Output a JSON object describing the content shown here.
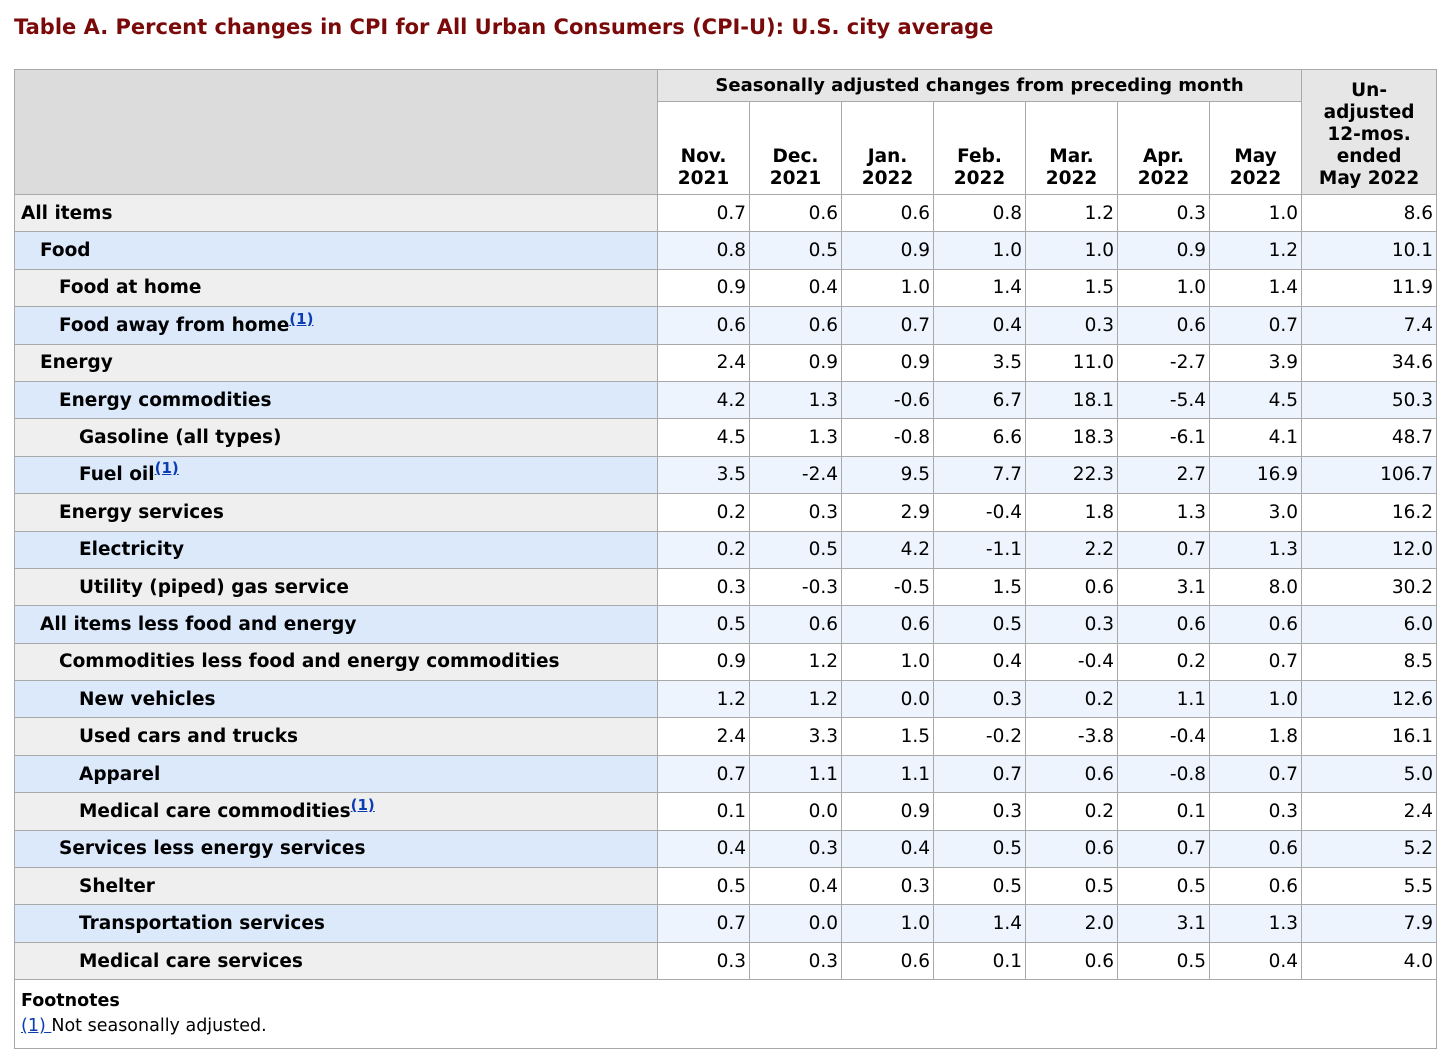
{
  "title": "Table A. Percent changes in CPI for All Urban Consumers (CPI-U): U.S. city average",
  "header": {
    "group_label": "Seasonally adjusted changes from preceding month",
    "months": [
      {
        "line1": "Nov.",
        "line2": "2021"
      },
      {
        "line1": "Dec.",
        "line2": "2021"
      },
      {
        "line1": "Jan.",
        "line2": "2022"
      },
      {
        "line1": "Feb.",
        "line2": "2022"
      },
      {
        "line1": "Mar.",
        "line2": "2022"
      },
      {
        "line1": "Apr.",
        "line2": "2022"
      },
      {
        "line1": "May",
        "line2": "2022"
      }
    ],
    "unadjusted": {
      "l1": "Un-",
      "l2": "adjusted",
      "l3": "12-mos.",
      "l4": "ended",
      "l5": "May 2022"
    }
  },
  "rows": [
    {
      "label": "All items",
      "indent": 0,
      "footnote": "",
      "values": [
        "0.7",
        "0.6",
        "0.6",
        "0.8",
        "1.2",
        "0.3",
        "1.0",
        "8.6"
      ]
    },
    {
      "label": "Food",
      "indent": 1,
      "footnote": "",
      "values": [
        "0.8",
        "0.5",
        "0.9",
        "1.0",
        "1.0",
        "0.9",
        "1.2",
        "10.1"
      ]
    },
    {
      "label": "Food at home",
      "indent": 2,
      "footnote": "",
      "values": [
        "0.9",
        "0.4",
        "1.0",
        "1.4",
        "1.5",
        "1.0",
        "1.4",
        "11.9"
      ]
    },
    {
      "label": "Food away from home",
      "indent": 2,
      "footnote": "(1)",
      "values": [
        "0.6",
        "0.6",
        "0.7",
        "0.4",
        "0.3",
        "0.6",
        "0.7",
        "7.4"
      ]
    },
    {
      "label": "Energy",
      "indent": 1,
      "footnote": "",
      "values": [
        "2.4",
        "0.9",
        "0.9",
        "3.5",
        "11.0",
        "-2.7",
        "3.9",
        "34.6"
      ]
    },
    {
      "label": "Energy commodities",
      "indent": 2,
      "footnote": "",
      "values": [
        "4.2",
        "1.3",
        "-0.6",
        "6.7",
        "18.1",
        "-5.4",
        "4.5",
        "50.3"
      ]
    },
    {
      "label": "Gasoline (all types)",
      "indent": 3,
      "footnote": "",
      "values": [
        "4.5",
        "1.3",
        "-0.8",
        "6.6",
        "18.3",
        "-6.1",
        "4.1",
        "48.7"
      ]
    },
    {
      "label": "Fuel oil",
      "indent": 3,
      "footnote": "(1)",
      "values": [
        "3.5",
        "-2.4",
        "9.5",
        "7.7",
        "22.3",
        "2.7",
        "16.9",
        "106.7"
      ]
    },
    {
      "label": "Energy services",
      "indent": 2,
      "footnote": "",
      "values": [
        "0.2",
        "0.3",
        "2.9",
        "-0.4",
        "1.8",
        "1.3",
        "3.0",
        "16.2"
      ]
    },
    {
      "label": "Electricity",
      "indent": 3,
      "footnote": "",
      "values": [
        "0.2",
        "0.5",
        "4.2",
        "-1.1",
        "2.2",
        "0.7",
        "1.3",
        "12.0"
      ]
    },
    {
      "label": "Utility (piped) gas service",
      "indent": 3,
      "footnote": "",
      "values": [
        "0.3",
        "-0.3",
        "-0.5",
        "1.5",
        "0.6",
        "3.1",
        "8.0",
        "30.2"
      ]
    },
    {
      "label": "All items less food and energy",
      "indent": 1,
      "footnote": "",
      "values": [
        "0.5",
        "0.6",
        "0.6",
        "0.5",
        "0.3",
        "0.6",
        "0.6",
        "6.0"
      ]
    },
    {
      "label": "Commodities less food and energy commodities",
      "indent": 2,
      "footnote": "",
      "values": [
        "0.9",
        "1.2",
        "1.0",
        "0.4",
        "-0.4",
        "0.2",
        "0.7",
        "8.5"
      ]
    },
    {
      "label": "New vehicles",
      "indent": 3,
      "footnote": "",
      "values": [
        "1.2",
        "1.2",
        "0.0",
        "0.3",
        "0.2",
        "1.1",
        "1.0",
        "12.6"
      ]
    },
    {
      "label": "Used cars and trucks",
      "indent": 3,
      "footnote": "",
      "values": [
        "2.4",
        "3.3",
        "1.5",
        "-0.2",
        "-3.8",
        "-0.4",
        "1.8",
        "16.1"
      ]
    },
    {
      "label": "Apparel",
      "indent": 3,
      "footnote": "",
      "values": [
        "0.7",
        "1.1",
        "1.1",
        "0.7",
        "0.6",
        "-0.8",
        "0.7",
        "5.0"
      ]
    },
    {
      "label": "Medical care commodities",
      "indent": 3,
      "footnote": "(1)",
      "values": [
        "0.1",
        "0.0",
        "0.9",
        "0.3",
        "0.2",
        "0.1",
        "0.3",
        "2.4"
      ]
    },
    {
      "label": "Services less energy services",
      "indent": 2,
      "footnote": "",
      "values": [
        "0.4",
        "0.3",
        "0.4",
        "0.5",
        "0.6",
        "0.7",
        "0.6",
        "5.2"
      ]
    },
    {
      "label": "Shelter",
      "indent": 3,
      "footnote": "",
      "values": [
        "0.5",
        "0.4",
        "0.3",
        "0.5",
        "0.5",
        "0.5",
        "0.6",
        "5.5"
      ]
    },
    {
      "label": "Transportation services",
      "indent": 3,
      "footnote": "",
      "values": [
        "0.7",
        "0.0",
        "1.0",
        "1.4",
        "2.0",
        "3.1",
        "1.3",
        "7.9"
      ]
    },
    {
      "label": "Medical care services",
      "indent": 3,
      "footnote": "",
      "values": [
        "0.3",
        "0.3",
        "0.6",
        "0.1",
        "0.6",
        "0.5",
        "0.4",
        "4.0"
      ]
    }
  ],
  "footnotes": {
    "heading": "Footnotes",
    "items": [
      {
        "marker": "(1) ",
        "text": "Not seasonally adjusted."
      }
    ]
  },
  "colors": {
    "title": "#7a0a0a",
    "row_label_alt": "#dbe9fb",
    "row_label": "#efefef",
    "link": "#0b3db5"
  }
}
